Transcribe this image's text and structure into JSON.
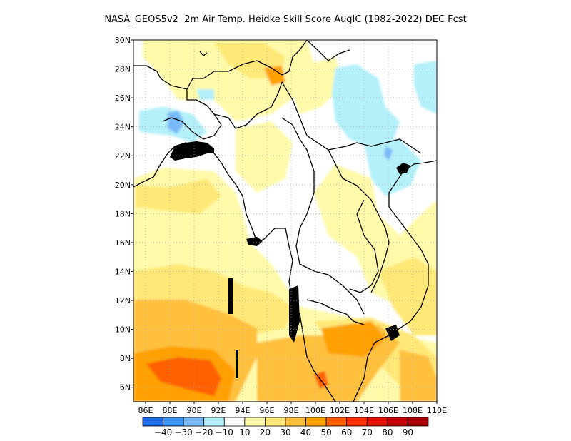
{
  "title": "NASA_GEOS5v2  2m Air Temp. Heidke Skill Score AugIC (1982-2022) DEC Fcst",
  "map": {
    "lon_range": [
      85,
      110
    ],
    "lat_range": [
      5,
      30
    ],
    "grid": "dotted",
    "lon_ticks": [
      "86E",
      "88E",
      "90E",
      "92E",
      "94E",
      "96E",
      "98E",
      "100E",
      "102E",
      "104E",
      "106E",
      "108E",
      "110E"
    ],
    "lat_ticks": [
      "30N",
      "28N",
      "26N",
      "24N",
      "22N",
      "20N",
      "18N",
      "16N",
      "14N",
      "12N",
      "10N",
      "8N",
      "6N"
    ]
  },
  "colorbar": {
    "labels": [
      "-40",
      "-30",
      "-20",
      "-10",
      "10",
      "20",
      "30",
      "40",
      "50",
      "60",
      "70",
      "80",
      "90"
    ],
    "colors": [
      "#1e6eeb",
      "#3c96f5",
      "#78b9fa",
      "#b4f0fa",
      "#ffffff",
      "#fffaaa",
      "#ffe878",
      "#ffc03c",
      "#ffa000",
      "#ff6000",
      "#ff3200",
      "#e11400",
      "#c00000",
      "#a50000"
    ]
  }
}
